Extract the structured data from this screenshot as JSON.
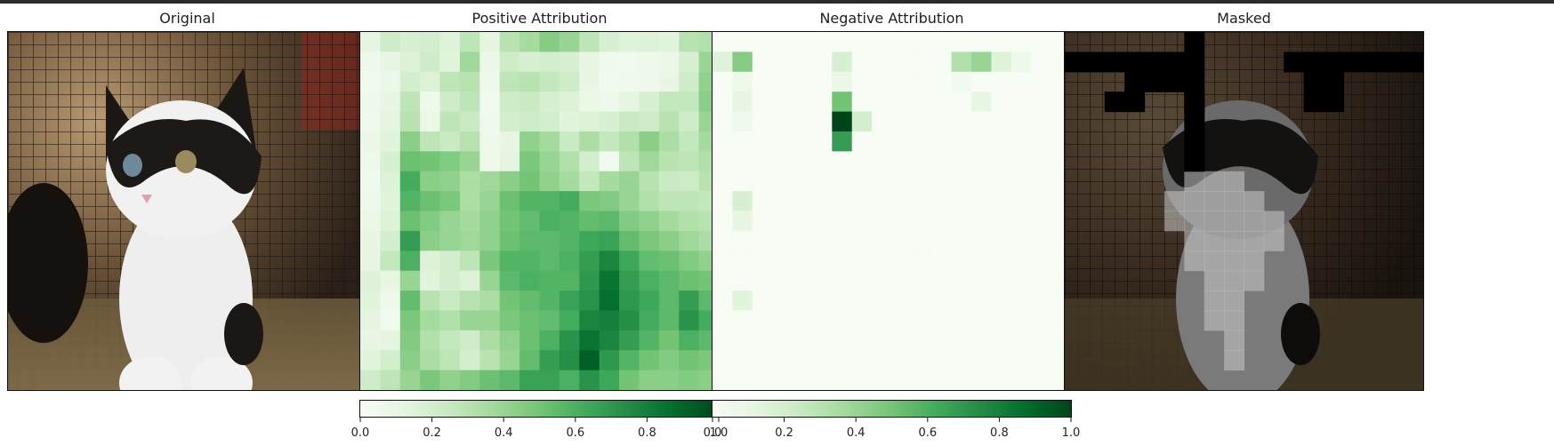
{
  "chart_data": [
    {
      "type": "image",
      "title": "Original",
      "image_desc": "Black-and-white kitten sitting in a metal wire cage with straw bedding"
    },
    {
      "type": "heatmap",
      "title": "Positive Attribution",
      "colormap": "Greens",
      "grid": [
        18,
        18
      ],
      "clim": [
        0,
        1
      ],
      "colorbar_ticks": [
        "0.0",
        "0.2",
        "0.4",
        "0.6",
        "0.8",
        "1.0"
      ],
      "values": [
        [
          0.12,
          0.22,
          0.18,
          0.2,
          0.15,
          0.28,
          0.12,
          0.3,
          0.36,
          0.45,
          0.4,
          0.28,
          0.18,
          0.15,
          0.16,
          0.14,
          0.3,
          0.32
        ],
        [
          0.06,
          0.1,
          0.16,
          0.22,
          0.14,
          0.38,
          0.08,
          0.22,
          0.18,
          0.2,
          0.18,
          0.1,
          0.05,
          0.04,
          0.06,
          0.08,
          0.18,
          0.4
        ],
        [
          0.04,
          0.08,
          0.2,
          0.16,
          0.28,
          0.3,
          0.06,
          0.28,
          0.3,
          0.26,
          0.22,
          0.1,
          0.04,
          0.05,
          0.06,
          0.1,
          0.22,
          0.42
        ],
        [
          0.06,
          0.1,
          0.28,
          0.06,
          0.22,
          0.28,
          0.04,
          0.22,
          0.24,
          0.18,
          0.16,
          0.08,
          0.06,
          0.12,
          0.18,
          0.26,
          0.26,
          0.44
        ],
        [
          0.05,
          0.12,
          0.3,
          0.08,
          0.28,
          0.24,
          0.05,
          0.2,
          0.22,
          0.2,
          0.14,
          0.16,
          0.18,
          0.24,
          0.22,
          0.3,
          0.22,
          0.4
        ],
        [
          0.08,
          0.14,
          0.44,
          0.28,
          0.24,
          0.3,
          0.06,
          0.1,
          0.42,
          0.36,
          0.24,
          0.34,
          0.26,
          0.32,
          0.44,
          0.34,
          0.26,
          0.36
        ],
        [
          0.06,
          0.18,
          0.52,
          0.5,
          0.46,
          0.4,
          0.06,
          0.12,
          0.48,
          0.4,
          0.32,
          0.2,
          0.04,
          0.28,
          0.38,
          0.3,
          0.28,
          0.32
        ],
        [
          0.05,
          0.16,
          0.62,
          0.44,
          0.42,
          0.34,
          0.38,
          0.44,
          0.5,
          0.42,
          0.36,
          0.26,
          0.36,
          0.4,
          0.3,
          0.24,
          0.22,
          0.3
        ],
        [
          0.06,
          0.14,
          0.58,
          0.52,
          0.48,
          0.34,
          0.4,
          0.52,
          0.58,
          0.58,
          0.62,
          0.48,
          0.46,
          0.4,
          0.32,
          0.28,
          0.28,
          0.26
        ],
        [
          0.08,
          0.16,
          0.52,
          0.46,
          0.4,
          0.36,
          0.42,
          0.5,
          0.54,
          0.6,
          0.58,
          0.54,
          0.56,
          0.46,
          0.42,
          0.36,
          0.32,
          0.3
        ],
        [
          0.1,
          0.2,
          0.68,
          0.44,
          0.4,
          0.38,
          0.42,
          0.52,
          0.56,
          0.56,
          0.58,
          0.64,
          0.66,
          0.54,
          0.48,
          0.44,
          0.38,
          0.34
        ],
        [
          0.1,
          0.26,
          0.6,
          0.16,
          0.2,
          0.28,
          0.48,
          0.58,
          0.58,
          0.56,
          0.6,
          0.68,
          0.78,
          0.64,
          0.54,
          0.52,
          0.46,
          0.42
        ],
        [
          0.16,
          0.1,
          0.4,
          0.14,
          0.2,
          0.16,
          0.4,
          0.56,
          0.6,
          0.58,
          0.58,
          0.7,
          0.84,
          0.68,
          0.6,
          0.56,
          0.52,
          0.5
        ],
        [
          0.14,
          0.06,
          0.54,
          0.3,
          0.24,
          0.3,
          0.34,
          0.5,
          0.54,
          0.58,
          0.66,
          0.72,
          0.86,
          0.7,
          0.64,
          0.56,
          0.68,
          0.56
        ],
        [
          0.12,
          0.04,
          0.48,
          0.36,
          0.32,
          0.4,
          0.4,
          0.48,
          0.52,
          0.54,
          0.62,
          0.78,
          0.8,
          0.74,
          0.62,
          0.56,
          0.72,
          0.62
        ],
        [
          0.1,
          0.12,
          0.46,
          0.32,
          0.26,
          0.22,
          0.34,
          0.42,
          0.52,
          0.6,
          0.72,
          0.84,
          0.78,
          0.68,
          0.58,
          0.5,
          0.6,
          0.56
        ],
        [
          0.14,
          0.2,
          0.44,
          0.34,
          0.28,
          0.2,
          0.3,
          0.4,
          0.54,
          0.68,
          0.74,
          0.92,
          0.7,
          0.58,
          0.5,
          0.46,
          0.5,
          0.48
        ],
        [
          0.22,
          0.28,
          0.4,
          0.48,
          0.42,
          0.46,
          0.52,
          0.56,
          0.66,
          0.66,
          0.6,
          0.72,
          0.64,
          0.5,
          0.44,
          0.44,
          0.46,
          0.44
        ]
      ]
    },
    {
      "type": "heatmap",
      "title": "Negative Attribution",
      "colormap": "Greens",
      "grid": [
        18,
        18
      ],
      "clim": [
        0,
        1
      ],
      "colorbar_ticks": [
        "0.0",
        "0.2",
        "0.4",
        "0.6",
        "0.8",
        "1.0"
      ],
      "nonzero_cells": [
        {
          "r": 1,
          "c": 0,
          "v": 0.15
        },
        {
          "r": 1,
          "c": 1,
          "v": 0.45
        },
        {
          "r": 1,
          "c": 6,
          "v": 0.18
        },
        {
          "r": 1,
          "c": 12,
          "v": 0.32
        },
        {
          "r": 1,
          "c": 13,
          "v": 0.4
        },
        {
          "r": 1,
          "c": 14,
          "v": 0.15
        },
        {
          "r": 1,
          "c": 15,
          "v": 0.06
        },
        {
          "r": 2,
          "c": 1,
          "v": 0.06
        },
        {
          "r": 2,
          "c": 6,
          "v": 0.08
        },
        {
          "r": 2,
          "c": 12,
          "v": 0.04
        },
        {
          "r": 3,
          "c": 1,
          "v": 0.1
        },
        {
          "r": 3,
          "c": 6,
          "v": 0.5
        },
        {
          "r": 3,
          "c": 13,
          "v": 0.1
        },
        {
          "r": 4,
          "c": 1,
          "v": 0.05
        },
        {
          "r": 4,
          "c": 6,
          "v": 1.0
        },
        {
          "r": 4,
          "c": 7,
          "v": 0.2
        },
        {
          "r": 5,
          "c": 6,
          "v": 0.68
        },
        {
          "r": 8,
          "c": 1,
          "v": 0.18
        },
        {
          "r": 9,
          "c": 1,
          "v": 0.1
        },
        {
          "r": 13,
          "c": 1,
          "v": 0.14
        }
      ]
    },
    {
      "type": "image",
      "title": "Masked",
      "image_desc": "Original kitten image darkened, with black occluded patches and brighter unmasked squares over the kitten",
      "grid": [
        18,
        18
      ],
      "mask_black_cells": [
        [
          1,
          0
        ],
        [
          1,
          1
        ],
        [
          1,
          2
        ],
        [
          1,
          3
        ],
        [
          1,
          4
        ],
        [
          1,
          5
        ],
        [
          1,
          15
        ],
        [
          1,
          16
        ],
        [
          1,
          17
        ],
        [
          1,
          14
        ],
        [
          1,
          13
        ],
        [
          1,
          12
        ],
        [
          1,
          11
        ],
        [
          2,
          3
        ],
        [
          2,
          4
        ],
        [
          2,
          5
        ],
        [
          2,
          12
        ],
        [
          2,
          13
        ],
        [
          3,
          2
        ],
        [
          3,
          3
        ],
        [
          3,
          6
        ],
        [
          3,
          12
        ],
        [
          3,
          13
        ],
        [
          0,
          6
        ],
        [
          1,
          6
        ],
        [
          2,
          6
        ],
        [
          3,
          6
        ],
        [
          4,
          6
        ],
        [
          5,
          6
        ],
        [
          6,
          6
        ]
      ],
      "bright_cells": [
        [
          7,
          6
        ],
        [
          7,
          7
        ],
        [
          7,
          8
        ],
        [
          8,
          5
        ],
        [
          8,
          6
        ],
        [
          8,
          7
        ],
        [
          8,
          8
        ],
        [
          8,
          9
        ],
        [
          9,
          5
        ],
        [
          9,
          6
        ],
        [
          9,
          7
        ],
        [
          9,
          8
        ],
        [
          9,
          9
        ],
        [
          9,
          10
        ],
        [
          10,
          6
        ],
        [
          10,
          7
        ],
        [
          10,
          8
        ],
        [
          10,
          9
        ],
        [
          10,
          10
        ],
        [
          11,
          6
        ],
        [
          11,
          7
        ],
        [
          11,
          8
        ],
        [
          11,
          9
        ],
        [
          12,
          7
        ],
        [
          12,
          8
        ],
        [
          12,
          9
        ],
        [
          13,
          7
        ],
        [
          13,
          8
        ],
        [
          14,
          7
        ],
        [
          14,
          8
        ],
        [
          15,
          8
        ],
        [
          16,
          8
        ]
      ]
    }
  ]
}
